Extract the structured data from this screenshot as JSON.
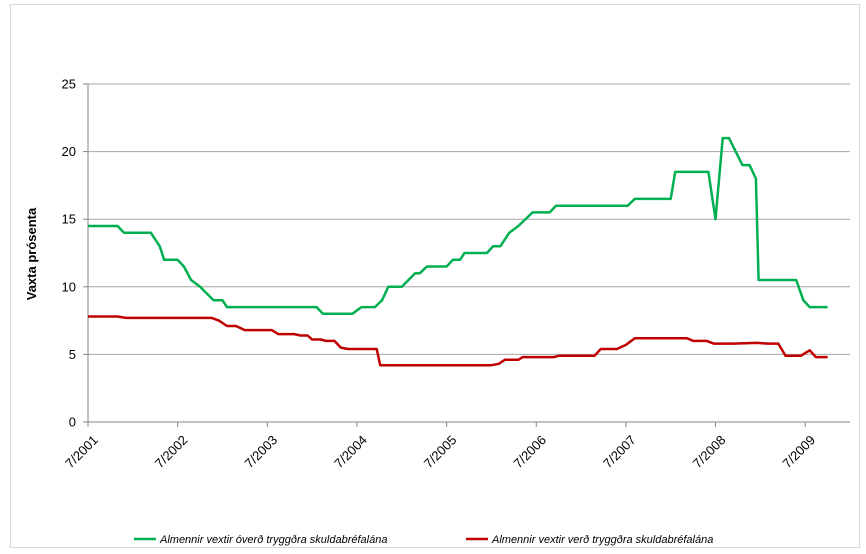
{
  "chart_data": {
    "type": "line",
    "title": "",
    "xlabel": "",
    "ylabel": "Vaxta prósenta",
    "ylim": [
      0,
      25
    ],
    "yticks": [
      0,
      5,
      10,
      15,
      20,
      25
    ],
    "xlim": [
      2001.5,
      2010.0
    ],
    "xticks": [
      {
        "label": "7/2001",
        "x": 2001.5
      },
      {
        "label": "7/2002",
        "x": 2002.5
      },
      {
        "label": "7/2003",
        "x": 2003.5
      },
      {
        "label": "7/2004",
        "x": 2004.5
      },
      {
        "label": "7/2005",
        "x": 2005.5
      },
      {
        "label": "7/2006",
        "x": 2006.5
      },
      {
        "label": "7/2007",
        "x": 2007.5
      },
      {
        "label": "7/2008",
        "x": 2008.5
      },
      {
        "label": "7/2009",
        "x": 2009.5
      }
    ],
    "grid": true,
    "legend_position": "bottom",
    "series": [
      {
        "name": "Almennir vextir óverð tryggðra skuldabréfalána",
        "color": "#00b050",
        "points": [
          [
            2001.5,
            14.5
          ],
          [
            2001.83,
            14.5
          ],
          [
            2001.9,
            14.0
          ],
          [
            2002.2,
            14.0
          ],
          [
            2002.3,
            13.0
          ],
          [
            2002.35,
            12.0
          ],
          [
            2002.5,
            12.0
          ],
          [
            2002.57,
            11.5
          ],
          [
            2002.65,
            10.5
          ],
          [
            2002.75,
            10.0
          ],
          [
            2002.9,
            9.0
          ],
          [
            2003.0,
            9.0
          ],
          [
            2003.05,
            8.5
          ],
          [
            2003.5,
            8.5
          ],
          [
            2004.05,
            8.5
          ],
          [
            2004.12,
            8.0
          ],
          [
            2004.45,
            8.0
          ],
          [
            2004.55,
            8.5
          ],
          [
            2004.7,
            8.5
          ],
          [
            2004.78,
            9.0
          ],
          [
            2004.85,
            10.0
          ],
          [
            2005.0,
            10.0
          ],
          [
            2005.15,
            11.0
          ],
          [
            2005.2,
            11.0
          ],
          [
            2005.28,
            11.5
          ],
          [
            2005.5,
            11.5
          ],
          [
            2005.57,
            12.0
          ],
          [
            2005.65,
            12.0
          ],
          [
            2005.7,
            12.5
          ],
          [
            2005.95,
            12.5
          ],
          [
            2006.02,
            13.0
          ],
          [
            2006.1,
            13.0
          ],
          [
            2006.2,
            14.0
          ],
          [
            2006.3,
            14.5
          ],
          [
            2006.38,
            15.0
          ],
          [
            2006.46,
            15.5
          ],
          [
            2006.65,
            15.5
          ],
          [
            2006.72,
            16.0
          ],
          [
            2007.4,
            16.0
          ],
          [
            2007.52,
            16.0
          ],
          [
            2007.6,
            16.5
          ],
          [
            2007.85,
            16.5
          ],
          [
            2008.0,
            16.5
          ],
          [
            2008.05,
            18.5
          ],
          [
            2008.42,
            18.5
          ],
          [
            2008.5,
            15.0
          ],
          [
            2008.58,
            21.0
          ],
          [
            2008.65,
            21.0
          ],
          [
            2008.8,
            19.0
          ],
          [
            2008.88,
            19.0
          ],
          [
            2008.95,
            18.0
          ],
          [
            2008.98,
            10.5
          ],
          [
            2009.4,
            10.5
          ],
          [
            2009.48,
            9.0
          ],
          [
            2009.55,
            8.5
          ],
          [
            2009.75,
            8.5
          ]
        ]
      },
      {
        "name": "Almennir vextir verð tryggðra skuldabréfalána",
        "color": "#c00000",
        "points": [
          [
            2001.5,
            7.8
          ],
          [
            2001.83,
            7.8
          ],
          [
            2001.92,
            7.7
          ],
          [
            2002.5,
            7.7
          ],
          [
            2002.88,
            7.7
          ],
          [
            2002.96,
            7.5
          ],
          [
            2003.05,
            7.1
          ],
          [
            2003.15,
            7.1
          ],
          [
            2003.25,
            6.8
          ],
          [
            2003.55,
            6.8
          ],
          [
            2003.62,
            6.5
          ],
          [
            2003.8,
            6.5
          ],
          [
            2003.87,
            6.4
          ],
          [
            2003.95,
            6.4
          ],
          [
            2004.0,
            6.1
          ],
          [
            2004.1,
            6.1
          ],
          [
            2004.15,
            6.0
          ],
          [
            2004.25,
            6.0
          ],
          [
            2004.32,
            5.5
          ],
          [
            2004.4,
            5.4
          ],
          [
            2004.72,
            5.4
          ],
          [
            2004.76,
            4.2
          ],
          [
            2005.5,
            4.2
          ],
          [
            2006.0,
            4.2
          ],
          [
            2006.08,
            4.3
          ],
          [
            2006.15,
            4.6
          ],
          [
            2006.3,
            4.6
          ],
          [
            2006.35,
            4.8
          ],
          [
            2006.7,
            4.8
          ],
          [
            2006.75,
            4.9
          ],
          [
            2007.15,
            4.9
          ],
          [
            2007.22,
            5.4
          ],
          [
            2007.4,
            5.4
          ],
          [
            2007.5,
            5.7
          ],
          [
            2007.6,
            6.2
          ],
          [
            2008.18,
            6.2
          ],
          [
            2008.25,
            6.0
          ],
          [
            2008.4,
            6.0
          ],
          [
            2008.48,
            5.8
          ],
          [
            2008.7,
            5.8
          ],
          [
            2008.95,
            5.85
          ],
          [
            2009.1,
            5.8
          ],
          [
            2009.2,
            5.8
          ],
          [
            2009.28,
            4.9
          ],
          [
            2009.45,
            4.9
          ],
          [
            2009.55,
            5.3
          ],
          [
            2009.62,
            4.8
          ],
          [
            2009.75,
            4.8
          ]
        ]
      }
    ]
  }
}
